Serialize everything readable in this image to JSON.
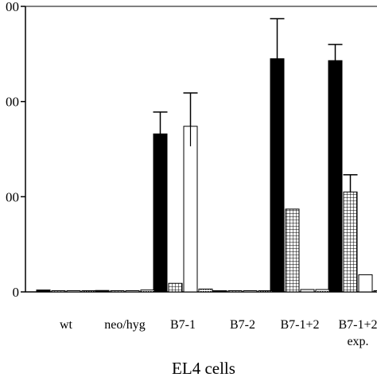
{
  "chart_data": {
    "type": "bar",
    "xlabel": "EL4 cells",
    "ylabel": "",
    "ylim": [
      0,
      3000
    ],
    "grid": false,
    "legend": "none",
    "y_tick_labels": [
      "0",
      "00",
      "00",
      "00"
    ],
    "y_tick_values": [
      0,
      1000,
      2000,
      3000
    ],
    "categories": [
      {
        "lines": [
          "wt"
        ]
      },
      {
        "lines": [
          "neo/hyg"
        ]
      },
      {
        "lines": [
          "B7-1"
        ]
      },
      {
        "lines": [
          "B7-2"
        ]
      },
      {
        "lines": [
          "B7-1+2"
        ]
      },
      {
        "lines": [
          "B7-1+2",
          "exp."
        ]
      }
    ],
    "series": [
      {
        "fill": "black",
        "values": [
          20,
          15,
          1660,
          5,
          2450,
          2430
        ],
        "errors": [
          0,
          0,
          230,
          0,
          420,
          170
        ]
      },
      {
        "fill": "grid",
        "values": [
          5,
          10,
          90,
          5,
          870,
          1050
        ],
        "errors": [
          0,
          0,
          0,
          0,
          0,
          180
        ]
      },
      {
        "fill": "white",
        "values": [
          5,
          10,
          1740,
          5,
          25,
          180
        ],
        "errors": [
          0,
          0,
          350,
          0,
          0,
          0
        ]
      },
      {
        "fill": "dots",
        "values": [
          10,
          20,
          30,
          5,
          25,
          0
        ],
        "errors": [
          0,
          0,
          0,
          0,
          0,
          0
        ]
      }
    ]
  }
}
